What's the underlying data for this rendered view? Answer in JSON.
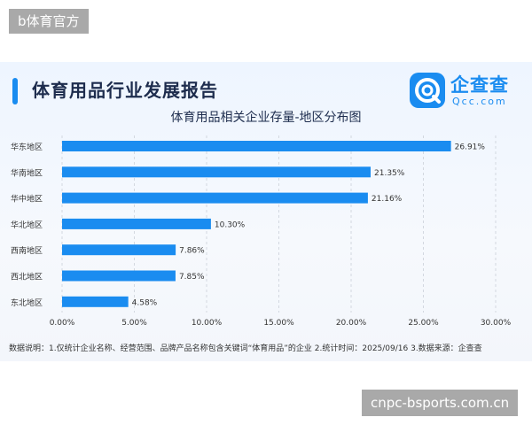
{
  "top_badge": "b体育官方",
  "bottom_badge": "cnpc-bsports.com.cn",
  "report": {
    "title": "体育用品行业发展报告",
    "logo_cn": "企查查",
    "logo_en": "Qcc.com",
    "footnote": "数据说明：1.仅统计企业名称、经营范围、品牌产品名称包含关键词“体育用品”的企业  2.统计时间：2025/09/16  3.数据来源：企查查"
  },
  "colors": {
    "bar": "#1a8cf0",
    "accent": "#1a8cf0",
    "grid": "#d3d8e0"
  },
  "chart_data": {
    "type": "bar",
    "orientation": "horizontal",
    "title": "体育用品相关企业存量-地区分布图",
    "categories": [
      "华东地区",
      "华南地区",
      "华中地区",
      "华北地区",
      "西南地区",
      "西北地区",
      "东北地区"
    ],
    "values": [
      26.91,
      21.35,
      21.16,
      10.3,
      7.86,
      7.85,
      4.58
    ],
    "value_labels": [
      "26.91%",
      "21.35%",
      "21.16%",
      "10.30%",
      "7.86%",
      "7.85%",
      "4.58%"
    ],
    "xticks": [
      "0.00%",
      "5.00%",
      "10.00%",
      "15.00%",
      "20.00%",
      "25.00%",
      "30.00%"
    ],
    "xlim": [
      0,
      30
    ],
    "grid": true,
    "legend": "none"
  }
}
